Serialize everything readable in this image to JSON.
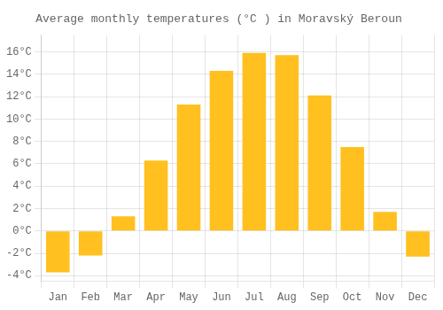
{
  "chart_data": {
    "type": "bar",
    "title": "Average monthly temperatures (°C ) in Moravský Beroun",
    "categories": [
      "Jan",
      "Feb",
      "Mar",
      "Apr",
      "May",
      "Jun",
      "Jul",
      "Aug",
      "Sep",
      "Oct",
      "Nov",
      "Dec"
    ],
    "values": [
      -3.7,
      -2.2,
      1.3,
      6.3,
      11.3,
      14.3,
      15.9,
      15.7,
      12.1,
      7.5,
      1.7,
      -2.3
    ],
    "color": "#FFC020",
    "ylim": [
      -4.5,
      17.5
    ],
    "yticks": [
      {
        "value": -4,
        "label": "-4°C"
      },
      {
        "value": -2,
        "label": "-2°C"
      },
      {
        "value": 0,
        "label": "0°C"
      },
      {
        "value": 2,
        "label": "2°C"
      },
      {
        "value": 4,
        "label": "4°C"
      },
      {
        "value": 6,
        "label": "6°C"
      },
      {
        "value": 8,
        "label": "8°C"
      },
      {
        "value": 10,
        "label": "10°C"
      },
      {
        "value": 12,
        "label": "12°C"
      },
      {
        "value": 14,
        "label": "14°C"
      },
      {
        "value": 16,
        "label": "16°C"
      }
    ],
    "grid": true
  }
}
